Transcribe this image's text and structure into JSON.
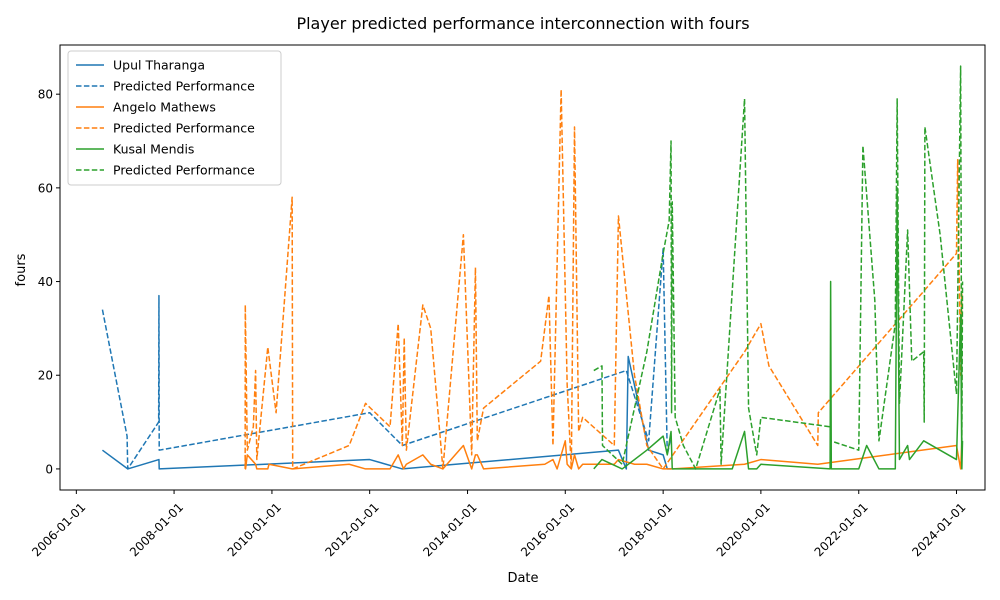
{
  "chart_data": {
    "type": "line",
    "title": "Player predicted performance interconnection with fours",
    "xlabel": "Date",
    "ylabel": "fours",
    "xlim": [
      "2005-09-01",
      "2024-08-01"
    ],
    "ylim": [
      -4.5,
      90.5
    ],
    "x_ticks": [
      "2006-01-01",
      "2008-01-01",
      "2010-01-01",
      "2012-01-01",
      "2014-01-01",
      "2016-01-01",
      "2018-01-01",
      "2020-01-01",
      "2022-01-01",
      "2024-01-01"
    ],
    "y_ticks": [
      0,
      20,
      40,
      60,
      80
    ],
    "legend_position": "upper-left",
    "grid": false,
    "series": [
      {
        "name": "Upul Tharanga",
        "color": "#1f77b4",
        "style": "solid",
        "points": [
          [
            "2006-07-15",
            4
          ],
          [
            "2007-01-20",
            0
          ],
          [
            "2007-09-10",
            2
          ],
          [
            "2007-09-12",
            0
          ],
          [
            "2012-01-01",
            2
          ],
          [
            "2012-09-01",
            0
          ],
          [
            "2017-02-01",
            4
          ],
          [
            "2017-04-01",
            0
          ],
          [
            "2017-04-15",
            24
          ],
          [
            "2017-09-15",
            4
          ],
          [
            "2018-01-01",
            3
          ],
          [
            "2018-02-01",
            0
          ],
          [
            "2018-03-01",
            0
          ]
        ]
      },
      {
        "name": "Predicted Performance",
        "color": "#1f77b4",
        "style": "dashed",
        "points": [
          [
            "2006-07-15",
            34
          ],
          [
            "2007-01-15",
            7
          ],
          [
            "2007-01-20",
            0
          ],
          [
            "2007-09-08",
            10
          ],
          [
            "2007-09-10",
            37
          ],
          [
            "2007-09-12",
            4
          ],
          [
            "2012-01-01",
            12
          ],
          [
            "2012-09-01",
            5
          ],
          [
            "2017-04-01",
            21
          ],
          [
            "2017-09-15",
            6
          ],
          [
            "2018-01-01",
            47
          ],
          [
            "2018-02-01",
            3
          ],
          [
            "2018-03-01",
            7
          ]
        ]
      },
      {
        "name": "Angelo Mathews",
        "color": "#ff7f0e",
        "style": "solid",
        "points": [
          [
            "2009-06-15",
            3
          ],
          [
            "2009-06-18",
            0
          ],
          [
            "2009-07-01",
            3
          ],
          [
            "2009-09-01",
            1
          ],
          [
            "2009-09-10",
            0
          ],
          [
            "2009-12-01",
            0
          ],
          [
            "2009-12-10",
            1
          ],
          [
            "2010-06-01",
            0
          ],
          [
            "2010-06-05",
            0
          ],
          [
            "2011-08-01",
            1
          ],
          [
            "2011-12-01",
            0
          ],
          [
            "2012-06-01",
            0
          ],
          [
            "2012-08-01",
            3
          ],
          [
            "2012-09-10",
            0
          ],
          [
            "2012-10-01",
            1
          ],
          [
            "2013-02-01",
            3
          ],
          [
            "2013-04-01",
            1
          ],
          [
            "2013-07-01",
            0
          ],
          [
            "2013-12-01",
            5
          ],
          [
            "2014-02-01",
            0
          ],
          [
            "2014-03-01",
            3
          ],
          [
            "2014-03-15",
            3
          ],
          [
            "2014-05-01",
            0
          ],
          [
            "2015-08-01",
            1
          ],
          [
            "2015-10-01",
            2
          ],
          [
            "2015-11-01",
            0
          ],
          [
            "2016-01-01",
            6
          ],
          [
            "2016-01-15",
            1
          ],
          [
            "2016-02-15",
            0
          ],
          [
            "2016-03-10",
            3
          ],
          [
            "2016-04-10",
            0
          ],
          [
            "2016-05-10",
            1
          ],
          [
            "2017-01-01",
            1
          ],
          [
            "2017-02-01",
            2
          ],
          [
            "2017-06-01",
            1
          ],
          [
            "2017-09-01",
            1
          ],
          [
            "2018-01-01",
            0
          ],
          [
            "2018-03-15",
            0
          ],
          [
            "2019-09-01",
            1
          ],
          [
            "2020-01-01",
            2
          ],
          [
            "2021-03-01",
            1
          ],
          [
            "2024-01-01",
            5
          ],
          [
            "2024-02-01",
            0
          ],
          [
            "2024-02-10",
            6
          ]
        ]
      },
      {
        "name": "Predicted Performance",
        "color": "#ff7f0e",
        "style": "dashed",
        "points": [
          [
            "2009-06-15",
            0
          ],
          [
            "2009-06-16",
            35
          ],
          [
            "2009-07-01",
            4
          ],
          [
            "2009-08-15",
            9
          ],
          [
            "2009-09-01",
            21
          ],
          [
            "2009-09-10",
            2
          ],
          [
            "2009-12-01",
            26
          ],
          [
            "2010-02-01",
            12
          ],
          [
            "2010-06-01",
            58
          ],
          [
            "2010-06-05",
            0
          ],
          [
            "2011-08-01",
            5
          ],
          [
            "2011-12-01",
            14
          ],
          [
            "2012-06-01",
            9
          ],
          [
            "2012-08-01",
            31
          ],
          [
            "2012-09-01",
            5
          ],
          [
            "2012-09-15",
            28
          ],
          [
            "2012-10-01",
            4
          ],
          [
            "2013-02-01",
            35
          ],
          [
            "2013-04-01",
            30
          ],
          [
            "2013-07-01",
            0
          ],
          [
            "2013-12-01",
            50
          ],
          [
            "2014-02-01",
            3
          ],
          [
            "2014-03-01",
            43
          ],
          [
            "2014-03-15",
            6
          ],
          [
            "2014-05-01",
            13
          ],
          [
            "2015-07-01",
            23
          ],
          [
            "2015-09-01",
            37
          ],
          [
            "2015-10-01",
            5
          ],
          [
            "2015-12-01",
            81
          ],
          [
            "2016-01-15",
            18
          ],
          [
            "2016-02-15",
            0
          ],
          [
            "2016-03-10",
            73
          ],
          [
            "2016-04-10",
            8
          ],
          [
            "2016-05-10",
            11
          ],
          [
            "2017-01-01",
            5
          ],
          [
            "2017-02-01",
            54
          ],
          [
            "2017-06-01",
            20
          ],
          [
            "2017-09-01",
            5
          ],
          [
            "2018-01-01",
            0
          ],
          [
            "2019-09-01",
            25
          ],
          [
            "2020-01-01",
            31
          ],
          [
            "2020-03-01",
            22
          ],
          [
            "2021-03-01",
            5
          ],
          [
            "2021-03-05",
            12
          ],
          [
            "2024-01-01",
            46
          ],
          [
            "2024-01-10",
            66
          ],
          [
            "2024-02-01",
            20
          ],
          [
            "2024-02-10",
            38
          ]
        ]
      },
      {
        "name": "Kusal Mendis",
        "color": "#2ca02c",
        "style": "solid",
        "points": [
          [
            "2016-08-01",
            0
          ],
          [
            "2016-10-01",
            2
          ],
          [
            "2017-03-01",
            0
          ],
          [
            "2017-09-01",
            4
          ],
          [
            "2018-01-01",
            7
          ],
          [
            "2018-02-01",
            3
          ],
          [
            "2018-03-01",
            8
          ],
          [
            "2018-03-10",
            0
          ],
          [
            "2018-06-01",
            0
          ],
          [
            "2019-06-01",
            0
          ],
          [
            "2019-09-01",
            8
          ],
          [
            "2019-10-01",
            0
          ],
          [
            "2019-12-01",
            0
          ],
          [
            "2020-01-01",
            1
          ],
          [
            "2021-06-01",
            0
          ],
          [
            "2021-06-05",
            40
          ],
          [
            "2021-06-10",
            0
          ],
          [
            "2022-01-01",
            0
          ],
          [
            "2022-03-01",
            5
          ],
          [
            "2022-06-01",
            0
          ],
          [
            "2022-10-01",
            0
          ],
          [
            "2022-10-15",
            60
          ],
          [
            "2022-11-01",
            2
          ],
          [
            "2023-01-01",
            5
          ],
          [
            "2023-01-15",
            2
          ],
          [
            "2023-05-01",
            6
          ],
          [
            "2024-01-01",
            2
          ],
          [
            "2024-02-01",
            33
          ],
          [
            "2024-02-10",
            0
          ],
          [
            "2024-02-15",
            6
          ]
        ]
      },
      {
        "name": "Predicted Performance",
        "color": "#2ca02c",
        "style": "dashed",
        "points": [
          [
            "2016-08-01",
            21
          ],
          [
            "2016-10-01",
            22
          ],
          [
            "2016-10-05",
            5
          ],
          [
            "2017-03-01",
            1
          ],
          [
            "2017-09-01",
            25
          ],
          [
            "2018-01-01",
            46
          ],
          [
            "2018-02-15",
            53
          ],
          [
            "2018-03-01",
            70
          ],
          [
            "2018-03-05",
            12
          ],
          [
            "2018-03-10",
            57
          ],
          [
            "2018-04-01",
            11
          ],
          [
            "2018-06-01",
            5
          ],
          [
            "2018-09-01",
            0
          ],
          [
            "2019-03-01",
            17
          ],
          [
            "2019-03-10",
            1
          ],
          [
            "2019-09-01",
            79
          ],
          [
            "2019-10-01",
            13
          ],
          [
            "2019-12-01",
            3
          ],
          [
            "2020-01-01",
            11
          ],
          [
            "2021-06-01",
            9
          ],
          [
            "2021-06-05",
            6
          ],
          [
            "2022-01-01",
            4
          ],
          [
            "2022-02-01",
            69
          ],
          [
            "2022-05-01",
            36
          ],
          [
            "2022-06-01",
            6
          ],
          [
            "2022-10-01",
            31
          ],
          [
            "2022-10-15",
            79
          ],
          [
            "2022-11-01",
            14
          ],
          [
            "2023-01-01",
            51
          ],
          [
            "2023-02-01",
            23
          ],
          [
            "2023-05-01",
            25
          ],
          [
            "2023-05-05",
            10
          ],
          [
            "2023-05-10",
            73
          ],
          [
            "2023-09-01",
            50
          ],
          [
            "2024-01-01",
            16
          ],
          [
            "2024-02-01",
            86
          ],
          [
            "2024-02-10",
            4
          ],
          [
            "2024-02-15",
            40
          ]
        ]
      }
    ]
  }
}
